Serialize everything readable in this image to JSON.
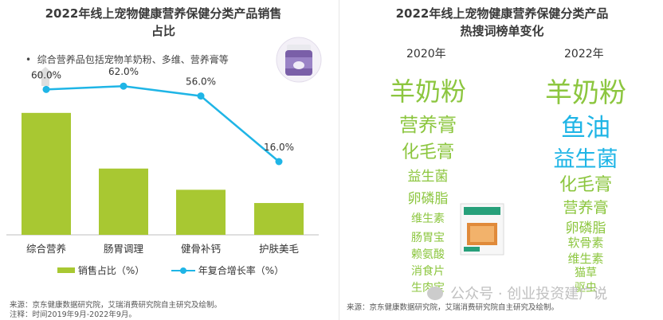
{
  "left_panel": {
    "title_line1": "2022年线上宠物健康营养保健分类产品销售",
    "title_line2": "占比",
    "bullet_note": "综合营养品包括宠物羊奶粉、多维、营养膏等",
    "legend_bar": "销售占比（%）",
    "legend_line": "年复合增长率（%）",
    "source_line1": "来源：京东健康数据研究院，艾瑞消费研究院自主研究及绘制。",
    "source_line2": "注释：时间2019年9月-2022年9月。"
  },
  "right_panel": {
    "title_line1": "2022年线上宠物健康营养保健分类产品",
    "title_line2": "热搜词榜单变化",
    "col_2020": "2020年",
    "col_2022": "2022年",
    "words_2020": [
      "羊奶粉",
      "营养膏",
      "化毛膏",
      "益生菌",
      "卵磷脂",
      "维生素",
      "肠胃宝",
      "赖氨酸",
      "消食片",
      "生肉宝"
    ],
    "words_2022": [
      "羊奶粉",
      "鱼油",
      "益生菌",
      "化毛膏",
      "营养膏",
      "卵磷脂",
      "软骨素",
      "维生素",
      "猫草",
      "驱虫"
    ],
    "colors": {
      "green": "#8cc63f",
      "cyan": "#1fb5e6"
    },
    "source": "来源：京东健康数据研究院，艾瑞消费研究院自主研究及绘制。",
    "watermark": "公众号 · 创业投资建广说"
  },
  "chart_data": {
    "type": "bar",
    "categories": [
      "综合营养",
      "肠胃调理",
      "健骨补钙",
      "护肤美毛"
    ],
    "series": [
      {
        "name": "销售占比（%）",
        "type": "bar",
        "values": [
          46,
          25,
          17,
          12
        ],
        "color": "#a8c832"
      },
      {
        "name": "年复合增长率（%）",
        "type": "line",
        "values": [
          60.0,
          62.0,
          56.0,
          16.0
        ],
        "labels": [
          "60.0%",
          "62.0%",
          "56.0%",
          "16.0%"
        ],
        "color": "#1fb5e6"
      }
    ],
    "legend": "bottom"
  }
}
